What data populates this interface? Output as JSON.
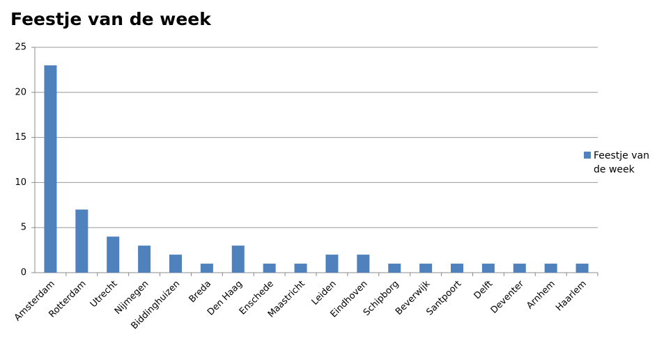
{
  "chart_data": {
    "type": "bar",
    "title": "Feestje van de week",
    "categories": [
      "Amsterdam",
      "Rotterdam",
      "Utrecht",
      "Nijmegen",
      "Biddinghuizen",
      "Breda",
      "Den Haag",
      "Enschede",
      "Maastricht",
      "Leiden",
      "Eindhoven",
      "Schipborg",
      "Beverwijk",
      "Santpoort",
      "Delft",
      "Deventer",
      "Arnhem",
      "Haarlem"
    ],
    "series": [
      {
        "name": "Feestje van de week",
        "color": "#4f81bd",
        "values": [
          23,
          7,
          4,
          3,
          2,
          1,
          3,
          1,
          1,
          2,
          2,
          1,
          1,
          1,
          1,
          1,
          1,
          1
        ]
      }
    ],
    "ylim": [
      0,
      25
    ],
    "yticks": [
      0,
      5,
      10,
      15,
      20,
      25
    ],
    "grid": true,
    "legend": "right"
  }
}
